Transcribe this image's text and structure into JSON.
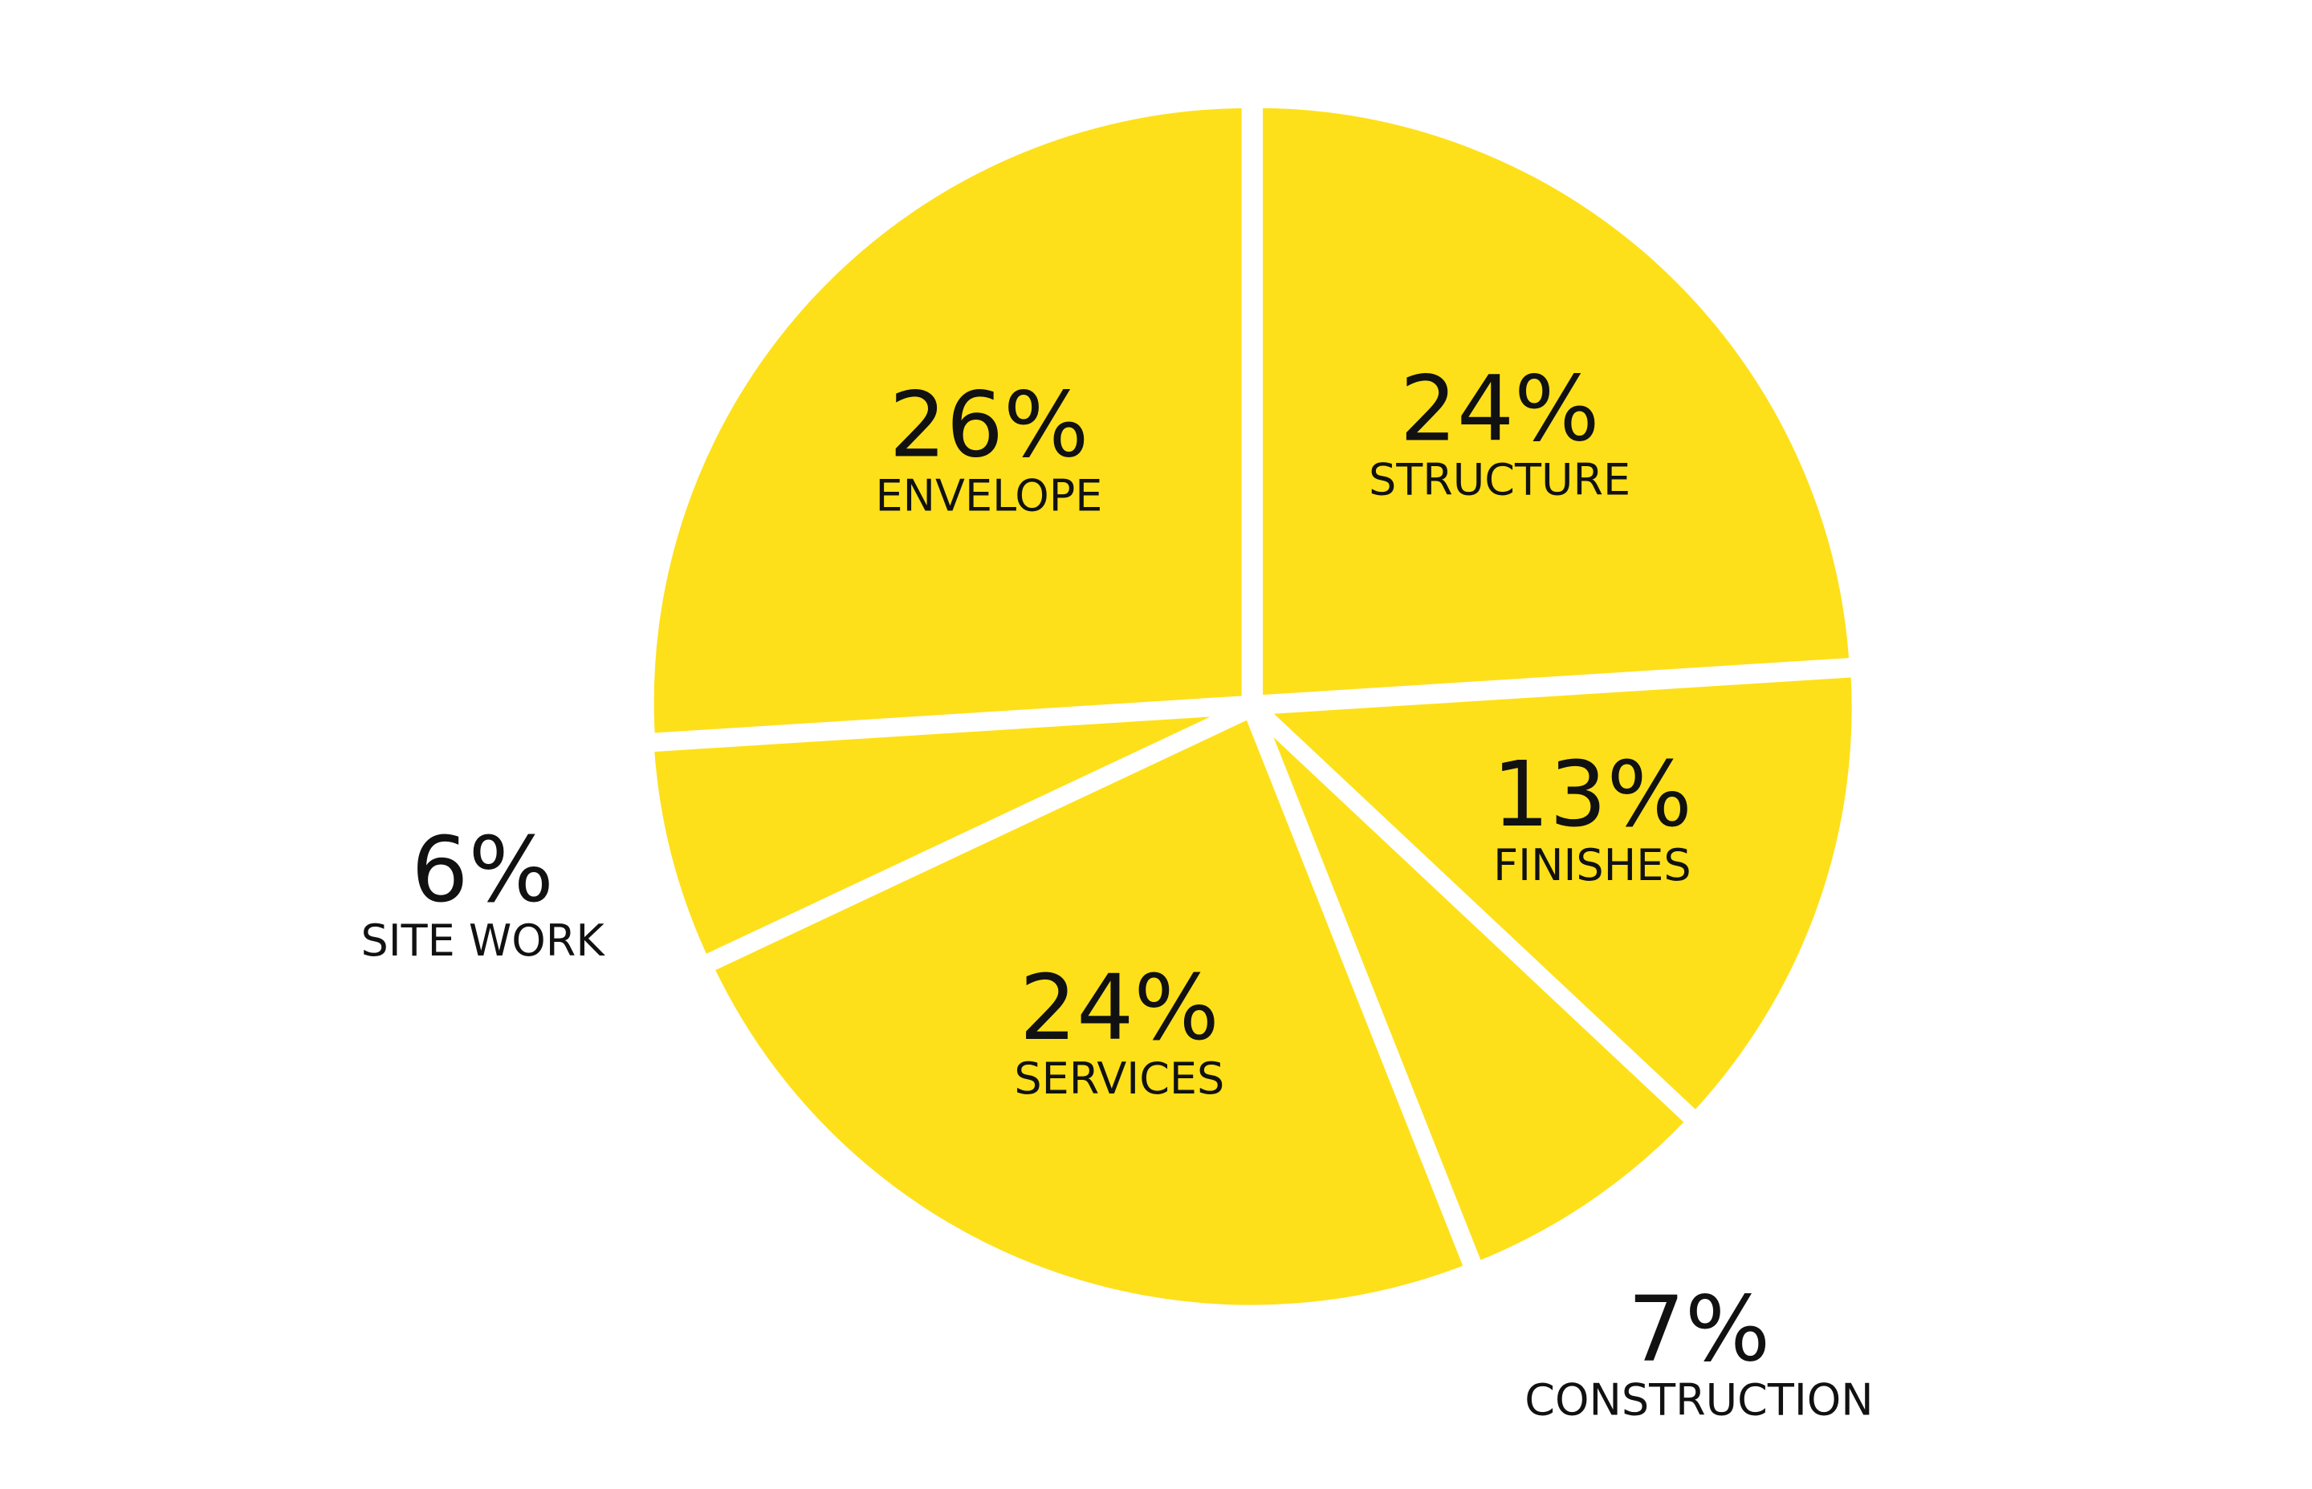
{
  "chart_data": {
    "type": "pie",
    "categories": [
      "STRUCTURE",
      "FINISHES",
      "CONSTRUCTION",
      "SERVICES",
      "SITE WORK",
      "ENVELOPE"
    ],
    "values": [
      24,
      13,
      7,
      24,
      6,
      26
    ],
    "value_labels": [
      "24%",
      "13%",
      "7%",
      "24%",
      "6%",
      "26%"
    ],
    "color": "#fde01a"
  }
}
